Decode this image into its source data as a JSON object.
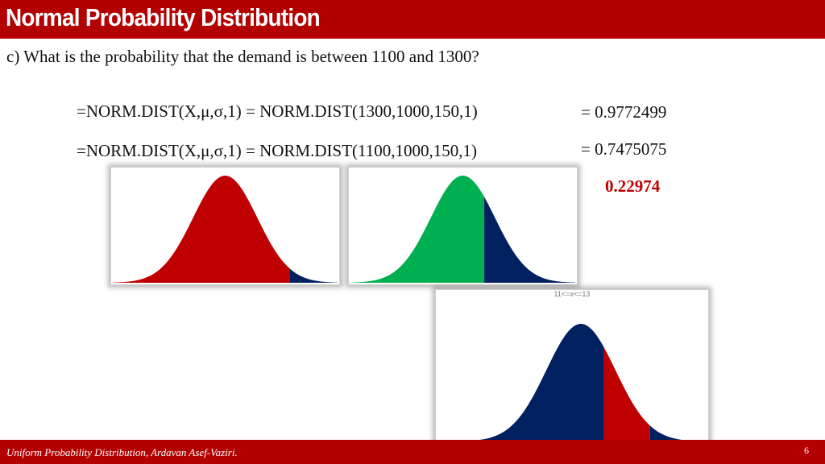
{
  "slide": {
    "title": "Normal Probability Distribution",
    "question": "c) What is the probability that the demand is between 1100 and 1300?",
    "formulas": [
      {
        "text": "=NORM.DIST(X,μ,σ,1) = NORM.DIST(1300,1000,150,1)",
        "result": "= 0.9772499"
      },
      {
        "text": "=NORM.DIST(X,μ,σ,1) = NORM.DIST(1100,1000,150,1)",
        "result": "= 0.7475075"
      }
    ],
    "answer": "0.22974",
    "footer": "Uniform Probability Distribution, Ardavan Asef-Vaziri.",
    "page_number": "6"
  },
  "figures": [
    {
      "fill_colors": [
        "#c00000",
        "#002060"
      ],
      "split_at": 1300
    },
    {
      "fill_colors": [
        "#00b050",
        "#002060"
      ],
      "split_at": 1100
    },
    {
      "label": "11<=x<=13",
      "fill_colors": [
        "#002060",
        "#c00000",
        "#002060"
      ],
      "split_from": 1100,
      "split_to": 1300
    }
  ],
  "colors": {
    "title_bar": "#b30000",
    "answer": "#c00000"
  }
}
